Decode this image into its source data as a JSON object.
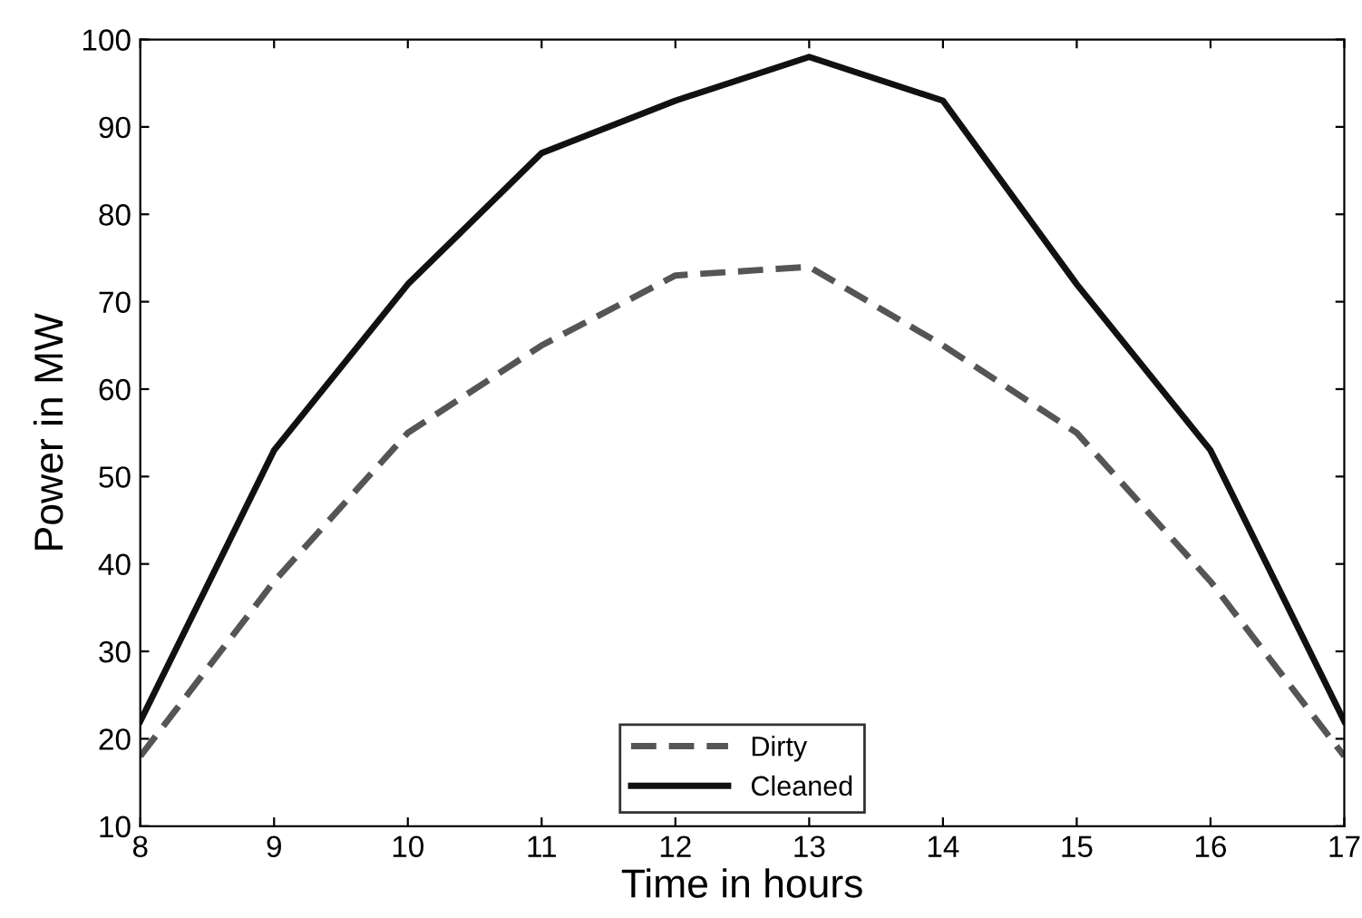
{
  "chart_data": {
    "type": "line",
    "xlabel": "Time in hours",
    "ylabel": "Power in MW",
    "x": [
      8,
      9,
      10,
      11,
      12,
      13,
      14,
      15,
      16,
      17
    ],
    "series": [
      {
        "name": "Dirty",
        "color": "#555555",
        "line_style": "dashed",
        "values": [
          18,
          38,
          55,
          65,
          73,
          74,
          65,
          55,
          38,
          18
        ]
      },
      {
        "name": "Cleaned",
        "color": "#111111",
        "line_style": "solid",
        "values": [
          22,
          53,
          72,
          87,
          93,
          98,
          93,
          72,
          53,
          22
        ]
      }
    ],
    "xlim": [
      8,
      17
    ],
    "xticks": [
      8,
      9,
      10,
      11,
      12,
      13,
      14,
      15,
      16,
      17
    ],
    "ylim": [
      10,
      100
    ],
    "yticks": [
      10,
      20,
      30,
      40,
      50,
      60,
      70,
      80,
      90,
      100
    ],
    "grid": false,
    "legend": "bottom",
    "marker": "none"
  }
}
